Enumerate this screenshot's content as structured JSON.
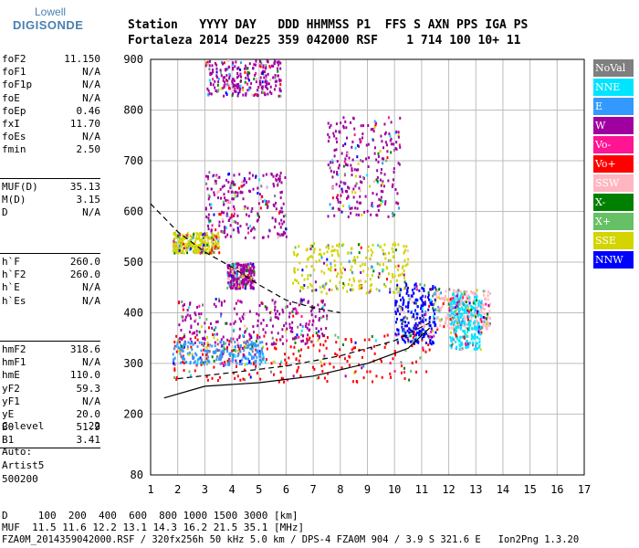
{
  "logo": {
    "top": "Lowell",
    "main": "DIGISONDE"
  },
  "header": {
    "line1": "Station   YYYY DAY   DDD HHMMSS P1  FFS S AXN PPS IGA PS",
    "line2": "Fortaleza 2014 Dez25 359 042000 RSF    1 714 100 10+ 11"
  },
  "params": {
    "group1": [
      {
        "label": "foF2",
        "value": "11.150"
      },
      {
        "label": "foF1",
        "value": "N/A"
      },
      {
        "label": "foF1p",
        "value": "N/A"
      },
      {
        "label": "foE",
        "value": "N/A"
      },
      {
        "label": "foEp",
        "value": "0.46"
      },
      {
        "label": "fxI",
        "value": "11.70"
      },
      {
        "label": "foEs",
        "value": "N/A"
      },
      {
        "label": "fmin",
        "value": "2.50"
      }
    ],
    "group2": [
      {
        "label": "MUF(D)",
        "value": "35.13"
      },
      {
        "label": "M(D)",
        "value": "3.15"
      },
      {
        "label": "D",
        "value": "N/A"
      }
    ],
    "group3": [
      {
        "label": "h`F",
        "value": "260.0"
      },
      {
        "label": "h`F2",
        "value": "260.0"
      },
      {
        "label": "h`E",
        "value": "N/A"
      },
      {
        "label": "h`Es",
        "value": "N/A"
      }
    ],
    "group4": [
      {
        "label": "hmF2",
        "value": "318.6"
      },
      {
        "label": "hmF1",
        "value": "N/A"
      },
      {
        "label": "hmE",
        "value": "110.0"
      },
      {
        "label": "yF2",
        "value": "59.3"
      },
      {
        "label": "yF1",
        "value": "N/A"
      },
      {
        "label": "yE",
        "value": "20.0"
      },
      {
        "label": "B0",
        "value": "51.9"
      },
      {
        "label": "B1",
        "value": "3.41"
      }
    ],
    "clevel": {
      "label": "C-level",
      "value": "22"
    },
    "notes": [
      "Auto:",
      "Artist5",
      "500200"
    ]
  },
  "legend": [
    {
      "label": "NoVal",
      "color": "#7f7f7f"
    },
    {
      "label": "NNE",
      "color": "#00e5ff"
    },
    {
      "label": "E",
      "color": "#3399ff"
    },
    {
      "label": "W",
      "color": "#a000a0"
    },
    {
      "label": "Vo-",
      "color": "#ff1493"
    },
    {
      "label": "Vo+",
      "color": "#ff0000"
    },
    {
      "label": "SSW",
      "color": "#ffb6c1"
    },
    {
      "label": "X-",
      "color": "#008000"
    },
    {
      "label": "X+",
      "color": "#66c066"
    },
    {
      "label": "SSE",
      "color": "#d4d400"
    },
    {
      "label": "NNW",
      "color": "#0000ff"
    }
  ],
  "footer": {
    "line1": "D     100  200  400  600  800 1000 1500 3000 [km]",
    "line2": "MUF  11.5 11.6 12.2 13.1 14.3 16.2 21.5 35.1 [MHz]",
    "line3": "FZA0M_2014359042000.RSF / 320fx256h 50 kHz 5.0 km / DPS-4 FZA0M 904 / 3.9 S 321.6 E   Ion2Png 1.3.20"
  },
  "chart_data": {
    "type": "scatter",
    "title": "",
    "xlabel": "",
    "ylabel": "",
    "xlim": [
      1,
      17
    ],
    "ylim": [
      80,
      900
    ],
    "x_ticks": [
      1,
      2,
      3,
      4,
      5,
      6,
      7,
      8,
      9,
      10,
      11,
      12,
      13,
      14,
      15,
      16,
      17
    ],
    "y_ticks": [
      80,
      200,
      300,
      400,
      500,
      600,
      700,
      800,
      900
    ],
    "grid": true,
    "clusters": [
      {
        "name": "O-trace low",
        "color": "#ff0000",
        "xr": [
          1.8,
          11.3
        ],
        "yr": [
          265,
          360
        ]
      },
      {
        "name": "W band 330",
        "color": "#a000a0",
        "xr": [
          2.0,
          7.5
        ],
        "yr": [
          340,
          430
        ]
      },
      {
        "name": "E band 300",
        "color": "#3399ff",
        "xr": [
          1.8,
          5.2
        ],
        "yr": [
          300,
          345
        ]
      },
      {
        "name": "SSE 480",
        "color": "#d4d400",
        "xr": [
          6.2,
          10.5
        ],
        "yr": [
          440,
          540
        ]
      },
      {
        "name": "NNW 400",
        "color": "#0000ff",
        "xr": [
          10.0,
          11.5
        ],
        "yr": [
          340,
          460
        ]
      },
      {
        "name": "SSW 400",
        "color": "#ffb6c1",
        "xr": [
          11.5,
          13.5
        ],
        "yr": [
          370,
          450
        ]
      },
      {
        "name": "W mid 590",
        "color": "#a000a0",
        "xr": [
          3.0,
          6.0
        ],
        "yr": [
          550,
          680
        ]
      },
      {
        "name": "W upper 700",
        "color": "#a000a0",
        "xr": [
          7.5,
          10.2
        ],
        "yr": [
          590,
          790
        ]
      },
      {
        "name": "W top 880",
        "color": "#a000a0",
        "xr": [
          3.0,
          5.8
        ],
        "yr": [
          830,
          900
        ]
      },
      {
        "name": "SSE low 540",
        "color": "#d4d400",
        "xr": [
          1.8,
          3.5
        ],
        "yr": [
          520,
          560
        ]
      },
      {
        "name": "W 480",
        "color": "#a000a0",
        "xr": [
          3.8,
          4.8
        ],
        "yr": [
          450,
          500
        ]
      },
      {
        "name": "NNE scatter",
        "color": "#00e5ff",
        "xr": [
          12.0,
          13.2
        ],
        "yr": [
          330,
          440
        ]
      }
    ],
    "curves": [
      {
        "name": "profile",
        "style": "solid",
        "x": [
          1.5,
          3,
          5,
          7,
          9,
          10.5,
          11.3
        ],
        "y": [
          232,
          255,
          262,
          275,
          300,
          330,
          370
        ]
      },
      {
        "name": "hm trace",
        "style": "dashed",
        "x": [
          1,
          2,
          3,
          4,
          5,
          6,
          7,
          8
        ],
        "y": [
          615,
          560,
          520,
          490,
          455,
          425,
          410,
          400
        ]
      },
      {
        "name": "trace2",
        "style": "dashed",
        "x": [
          2,
          4,
          6,
          8,
          10,
          11.3
        ],
        "y": [
          270,
          282,
          295,
          315,
          345,
          380
        ]
      }
    ]
  }
}
